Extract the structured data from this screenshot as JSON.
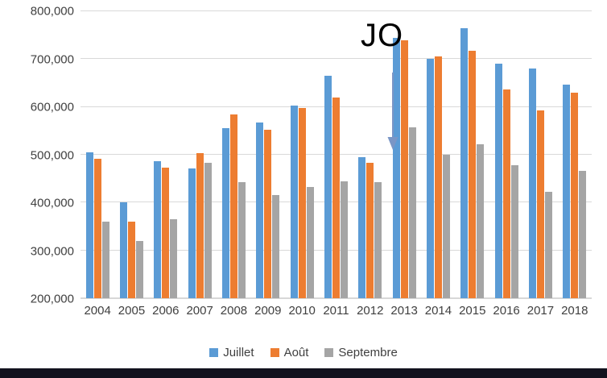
{
  "chart_data": {
    "type": "bar",
    "title": "",
    "xlabel": "",
    "ylabel": "",
    "categories": [
      "2004",
      "2005",
      "2006",
      "2007",
      "2008",
      "2009",
      "2010",
      "2011",
      "2012",
      "2013",
      "2014",
      "2015",
      "2016",
      "2017",
      "2018"
    ],
    "series": [
      {
        "name": "Juillet",
        "color": "#5B9BD5",
        "values": [
          505000,
          400000,
          487000,
          472000,
          555000,
          568000,
          603000,
          665000,
          495000,
          745000,
          700000,
          765000,
          690000,
          680000,
          647000
        ]
      },
      {
        "name": "Août",
        "color": "#ED7D31",
        "values": [
          492000,
          360000,
          473000,
          503000,
          585000,
          552000,
          598000,
          620000,
          483000,
          740000,
          705000,
          718000,
          637000,
          593000,
          630000
        ]
      },
      {
        "name": "Septembre",
        "color": "#A5A5A5",
        "values": [
          360000,
          320000,
          365000,
          483000,
          443000,
          415000,
          432000,
          445000,
          443000,
          558000,
          500000,
          522000,
          478000,
          423000,
          467000
        ]
      }
    ],
    "ylim": [
      200000,
      800000
    ],
    "yticks": [
      {
        "label": "200,000",
        "value": 200000
      },
      {
        "label": "300,000",
        "value": 300000
      },
      {
        "label": "400,000",
        "value": 400000
      },
      {
        "label": "500,000",
        "value": 500000
      },
      {
        "label": "600,000",
        "value": 600000
      },
      {
        "label": "700,000",
        "value": 700000
      },
      {
        "label": "800,000",
        "value": 800000
      }
    ],
    "grid": true,
    "legend_position": "bottom",
    "annotation": {
      "text": "JO",
      "arrow_color": "#7A96C6"
    }
  },
  "bottom_bar": {
    "color": "#12121e"
  }
}
